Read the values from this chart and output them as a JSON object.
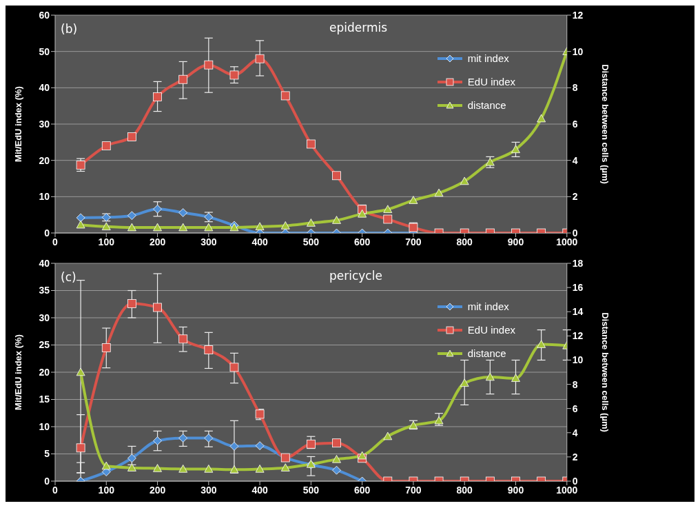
{
  "chart_data": [
    {
      "type": "line",
      "title": "epidermis",
      "annotations": [
        "(b)"
      ],
      "ylabel": "Mit/EdU index (%)",
      "y2label": "Distance between cells  (µm)",
      "x": [
        50,
        100,
        150,
        200,
        250,
        300,
        350,
        400,
        450,
        500,
        550,
        600,
        650,
        700,
        750,
        800,
        850,
        900,
        950,
        1000
      ],
      "xlim": [
        0,
        1000
      ],
      "xticks": [
        0,
        100,
        200,
        300,
        400,
        500,
        600,
        700,
        800,
        900,
        1000
      ],
      "ylim": [
        0,
        60
      ],
      "yticks": [
        0,
        10,
        20,
        30,
        40,
        50,
        60
      ],
      "y2lim": [
        0,
        12
      ],
      "y2ticks": [
        0,
        2,
        4,
        6,
        8,
        10,
        12
      ],
      "grid": "y",
      "legend": "top right",
      "line_style": "solid",
      "series": [
        {
          "name": "mit index",
          "color": "#4f8fd6",
          "marker": "diamond",
          "values": [
            4.2,
            4.3,
            4.8,
            6.6,
            5.6,
            4.4,
            2.1,
            0,
            0,
            0,
            0,
            0,
            0,
            0,
            null,
            null,
            null,
            null,
            null,
            null
          ],
          "errors": [
            null,
            1,
            null,
            2,
            null,
            1.3,
            null,
            null,
            null,
            null,
            null,
            null,
            null,
            null,
            null,
            null,
            null,
            null,
            null,
            null
          ]
        },
        {
          "name": "EdU index",
          "color": "#d9534a",
          "marker": "square",
          "values": [
            18.7,
            24,
            26.5,
            37.5,
            42.3,
            46.3,
            43.5,
            48,
            37.8,
            24.5,
            15.8,
            6.5,
            3.8,
            1.5,
            0,
            0,
            0,
            0,
            0,
            0
          ],
          "errors": [
            [
              17,
              20.5
            ],
            null,
            null,
            [
              33.5,
              41.7
            ],
            [
              37,
              47.2
            ],
            [
              38.7,
              53.7
            ],
            [
              41.3,
              45.8
            ],
            [
              43.3,
              53
            ],
            null,
            null,
            null,
            1.2,
            null,
            [
              0.5,
              2.8
            ],
            null,
            null,
            null,
            null,
            null,
            null
          ]
        },
        {
          "name": "distance",
          "color": "#a5c53a",
          "marker": "triangle",
          "axis": "y2",
          "values": [
            0.45,
            0.35,
            0.3,
            0.3,
            0.3,
            0.3,
            0.3,
            0.35,
            0.4,
            0.55,
            0.7,
            1.05,
            1.3,
            1.8,
            2.2,
            2.85,
            3.9,
            4.6,
            6.3,
            10
          ],
          "errors": [
            null,
            null,
            null,
            null,
            null,
            null,
            null,
            null,
            null,
            null,
            null,
            null,
            null,
            null,
            null,
            null,
            0.3,
            0.4,
            null,
            null
          ]
        }
      ]
    },
    {
      "type": "line",
      "title": "pericycle",
      "annotations": [
        "(c)"
      ],
      "ylabel": "Mit/EdU index (%)",
      "y2label": "Distance between cells  (µm)",
      "x": [
        50,
        100,
        150,
        200,
        250,
        300,
        350,
        400,
        450,
        500,
        550,
        600,
        650,
        700,
        750,
        800,
        850,
        900,
        950,
        1000
      ],
      "xlim": [
        0,
        1000
      ],
      "xticks": [
        0,
        100,
        200,
        300,
        400,
        500,
        600,
        700,
        800,
        900,
        1000
      ],
      "ylim": [
        0,
        40
      ],
      "yticks": [
        0,
        5,
        10,
        15,
        20,
        25,
        30,
        35,
        40
      ],
      "y2lim": [
        0,
        18
      ],
      "y2ticks": [
        0,
        2,
        4,
        6,
        8,
        10,
        12,
        14,
        16,
        18
      ],
      "grid": "y",
      "legend": "top right",
      "line_style": "solid",
      "series": [
        {
          "name": "mit index",
          "color": "#4f8fd6",
          "marker": "diamond",
          "values": [
            0,
            1.7,
            4.2,
            7.4,
            7.9,
            7.9,
            6.4,
            6.5,
            4.3,
            3,
            2,
            0,
            null,
            null,
            null,
            null,
            null,
            null,
            null,
            null
          ],
          "errors": [
            [
              0,
              3.4
            ],
            null,
            [
              3,
              6.4
            ],
            [
              5.6,
              9.2
            ],
            [
              6.4,
              9.2
            ],
            [
              6.3,
              9.2
            ],
            [
              1.5,
              11.1
            ],
            null,
            null,
            [
              1,
              4.5
            ],
            null,
            null,
            null,
            null,
            null,
            null,
            null,
            null,
            null,
            null
          ]
        },
        {
          "name": "EdU index",
          "color": "#d9534a",
          "marker": "square",
          "values": [
            6.1,
            24.5,
            32.6,
            31.9,
            26.1,
            24.1,
            20.9,
            12.3,
            4.3,
            6.8,
            7,
            4.2,
            0,
            0,
            0,
            0,
            0,
            0,
            0,
            0
          ],
          "errors": [
            [
              1.5,
              12.2
            ],
            [
              20.8,
              28.1
            ],
            [
              30,
              35
            ],
            [
              25.4,
              38.1
            ],
            [
              23.8,
              28.3
            ],
            [
              20.7,
              27.3
            ],
            [
              18,
              23.5
            ],
            [
              11.3,
              13.2
            ],
            null,
            [
              6,
              8.2
            ],
            null,
            null,
            null,
            null,
            null,
            null,
            null,
            null,
            null,
            null
          ]
        },
        {
          "name": "distance",
          "color": "#a5c53a",
          "marker": "triangle",
          "axis": "y2",
          "values": [
            9,
            1.25,
            1.1,
            1.05,
            1,
            1,
            0.95,
            1,
            1.1,
            1.4,
            1.8,
            2.1,
            3.7,
            4.6,
            5,
            8.1,
            8.6,
            8.5,
            11.3,
            11.2
          ],
          "errors": [
            [
              0.7,
              16.6
            ],
            null,
            null,
            null,
            null,
            null,
            null,
            null,
            null,
            null,
            null,
            null,
            null,
            [
              4.3,
              5
            ],
            [
              4.6,
              5.6
            ],
            [
              6.3,
              10
            ],
            [
              7.2,
              10
            ],
            [
              7.2,
              10
            ],
            [
              10,
              12.5
            ],
            [
              10,
              12.5
            ]
          ]
        }
      ]
    }
  ]
}
